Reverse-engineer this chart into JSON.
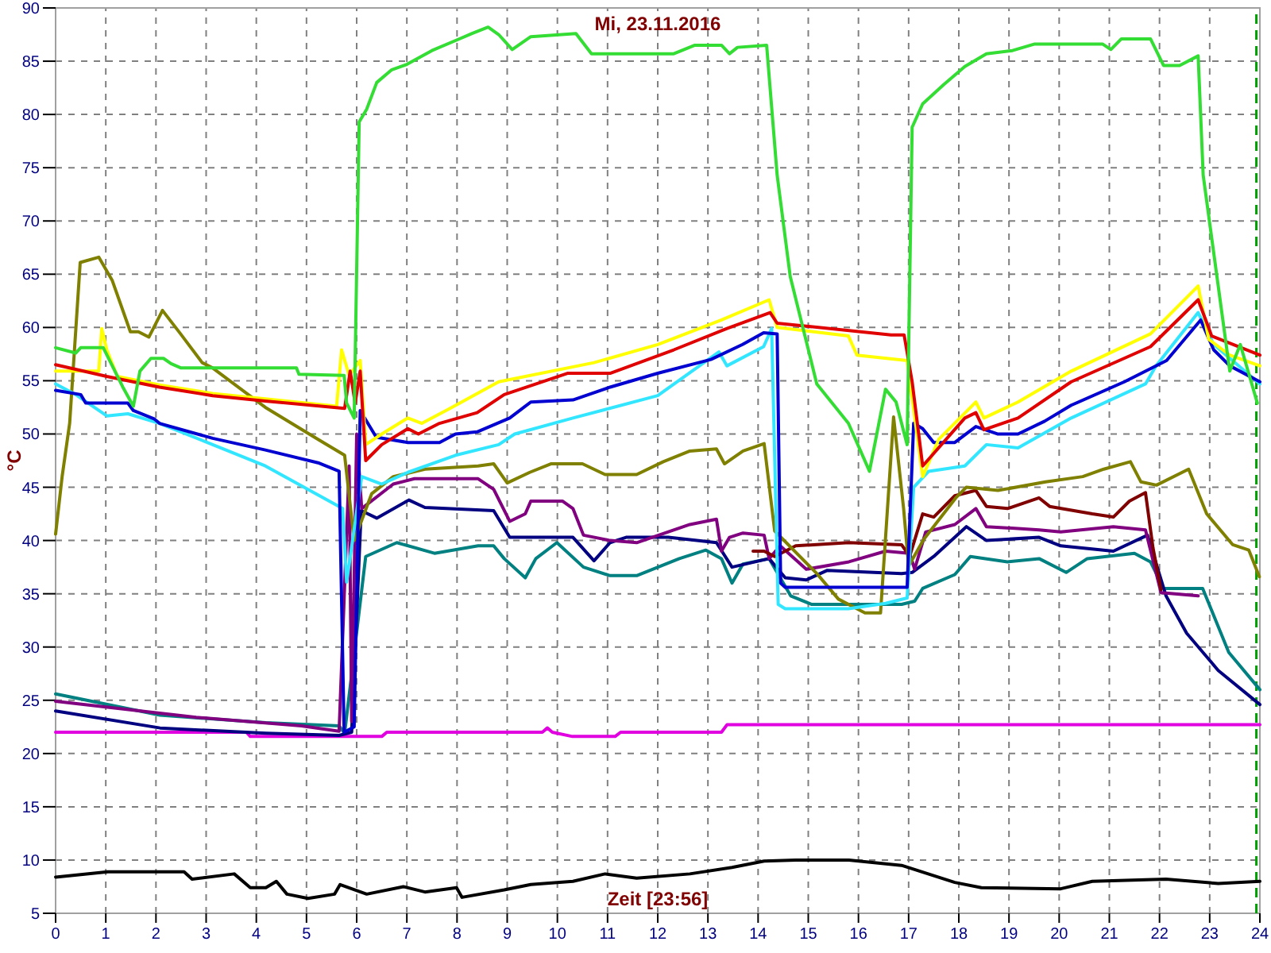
{
  "chart_data": {
    "type": "line",
    "title": "Mi, 23.11.2016",
    "xlabel": "Zeit [23:56]",
    "ylabel": "°C",
    "xlim": [
      0,
      24
    ],
    "ylim": [
      5,
      90
    ],
    "xticks": [
      0,
      1,
      2,
      3,
      4,
      5,
      6,
      7,
      8,
      9,
      10,
      11,
      12,
      13,
      14,
      15,
      16,
      17,
      18,
      19,
      20,
      21,
      22,
      23,
      24
    ],
    "yticks": [
      5,
      10,
      15,
      20,
      25,
      30,
      35,
      40,
      45,
      50,
      55,
      60,
      65,
      70,
      75,
      80,
      85,
      90
    ],
    "grid": true,
    "ref_lines": [
      {
        "axis": "x",
        "value": 23.93,
        "color": "#00a000",
        "line_style": "dashed"
      }
    ],
    "series": [
      {
        "color": "#000000",
        "x": [
          0,
          1.04,
          2.08,
          2.56,
          2.72,
          3.56,
          3.88,
          4.19,
          4.4,
          4.61,
          5.03,
          5.56,
          5.67,
          6.2,
          6.93,
          7.36,
          7.99,
          8.1,
          8.94,
          9.47,
          10.31,
          10.95,
          11.58,
          12.64,
          13.48,
          14.12,
          14.75,
          15.81,
          16.86,
          17.92,
          18.45,
          20.03,
          20.66,
          22.13,
          23.17,
          24
        ],
        "values": [
          8.4,
          8.9,
          8.9,
          8.9,
          8.2,
          8.7,
          7.4,
          7.4,
          8,
          6.8,
          6.4,
          6.8,
          7.7,
          6.8,
          7.5,
          7,
          7.4,
          6.5,
          7.2,
          7.7,
          8,
          8.7,
          8.3,
          8.7,
          9.3,
          9.9,
          10,
          10,
          9.5,
          7.9,
          7.4,
          7.3,
          8,
          8.2,
          7.8,
          8
        ]
      },
      {
        "color": "#e000e0",
        "x": [
          0,
          3.8,
          3.88,
          6.5,
          6.6,
          9.7,
          9.8,
          9.9,
          10.3,
          11.15,
          11.26,
          13.27,
          13.38,
          24
        ],
        "values": [
          22,
          22,
          21.6,
          21.6,
          22,
          22,
          22.4,
          22,
          21.6,
          21.6,
          22,
          22,
          22.7,
          22.7
        ]
      },
      {
        "color": "#008080",
        "x": [
          0,
          2.08,
          4.19,
          5.65,
          5.76,
          6.18,
          6.8,
          7.55,
          8.42,
          8.73,
          8.94,
          9.36,
          9.57,
          9.99,
          10.52,
          11.05,
          11.58,
          12.43,
          12.96,
          13.27,
          13.48,
          13.7,
          14.22,
          14.65,
          15.07,
          16.86,
          17.12,
          17.28,
          17.92,
          18.23,
          18.97,
          19.6,
          20.14,
          20.56,
          21.5,
          21.82,
          22.08,
          22.86,
          23.38,
          24
        ],
        "values": [
          25.6,
          23.6,
          22.9,
          22.6,
          21.9,
          38.5,
          39.8,
          38.8,
          39.5,
          39.5,
          38.3,
          36.5,
          38.3,
          39.8,
          37.5,
          36.7,
          36.7,
          38.3,
          39.1,
          38.3,
          36,
          37.8,
          38.3,
          34.8,
          34,
          34,
          34.3,
          35.5,
          36.8,
          38.5,
          38,
          38.3,
          37,
          38.3,
          38.8,
          38,
          35.5,
          35.5,
          29.5,
          26
        ]
      },
      {
        "color": "#000080",
        "x": [
          0,
          2.08,
          4.19,
          5.65,
          5.9,
          6.09,
          6.4,
          7.04,
          7.36,
          8.73,
          9.05,
          10.31,
          10.73,
          11.05,
          11.37,
          12.21,
          13.17,
          13.48,
          14.22,
          14.54,
          14.96,
          15.38,
          16.86,
          17.07,
          17.5,
          18.15,
          18.55,
          19.6,
          20.03,
          21.08,
          21.76,
          22.13,
          22.54,
          23.17,
          24
        ],
        "values": [
          24,
          22.4,
          21.9,
          21.7,
          22,
          42.8,
          42.1,
          43.8,
          43.1,
          42.8,
          40.3,
          40.3,
          38.1,
          39.8,
          40.3,
          40.3,
          39.8,
          37.5,
          38.3,
          36.5,
          36.3,
          37.2,
          36.9,
          37,
          38.5,
          41.3,
          40,
          40.3,
          39.5,
          39,
          40.5,
          34.8,
          31.3,
          27.8,
          24.6
        ]
      },
      {
        "color": "#800080",
        "x": [
          0,
          2.8,
          4.9,
          5.65,
          5.85,
          5.9,
          6,
          6.1,
          6.73,
          7.15,
          8.42,
          8.73,
          9.05,
          9.36,
          9.47,
          10.1,
          10.31,
          10.52,
          11.05,
          11.58,
          12.64,
          13.17,
          13.27,
          13.43,
          13.7,
          14.12,
          14.22,
          14.44,
          14.96,
          15.81,
          16.54,
          17.02,
          17.12,
          17.34,
          17.92,
          18.34,
          18.55,
          19.6,
          20.03,
          21.08,
          21.72,
          22.03,
          22.77
        ],
        "values": [
          24.9,
          23.4,
          22.6,
          22.1,
          47,
          23,
          50,
          43,
          45.3,
          45.8,
          45.8,
          44.8,
          41.8,
          42.5,
          43.7,
          43.7,
          43,
          40.5,
          40,
          39.8,
          41.5,
          42,
          39,
          40.3,
          40.7,
          40.5,
          38.3,
          39.5,
          37.3,
          38,
          39,
          38.8,
          37.3,
          40.8,
          41.5,
          43,
          41.3,
          41,
          40.8,
          41.3,
          41,
          35.1,
          34.8
        ]
      },
      {
        "color": "#800000",
        "x": [
          13.9,
          14.12,
          14.33,
          14.75,
          15.81,
          16.86,
          17.02,
          17.28,
          17.5,
          17.92,
          18.34,
          18.55,
          18.97,
          19.6,
          19.81,
          20.66,
          21.08,
          21.4,
          21.72,
          21.87,
          22.03
        ],
        "values": [
          39,
          39,
          38.5,
          39.5,
          39.8,
          39.6,
          38.5,
          42.5,
          42.2,
          44.2,
          44.7,
          43.2,
          43,
          44,
          43.2,
          42.5,
          42.2,
          43.7,
          44.5,
          39.3,
          35.4
        ]
      },
      {
        "color": "#808000",
        "x": [
          0,
          0.13,
          0.28,
          0.49,
          0.86,
          1.13,
          1.49,
          1.65,
          1.86,
          2.13,
          2.49,
          2.92,
          3.13,
          4.18,
          5.23,
          5.76,
          5.95,
          6.3,
          6.73,
          7.36,
          8.42,
          8.73,
          9,
          9.45,
          9.87,
          10.5,
          10.95,
          11.58,
          12.11,
          12.64,
          13.17,
          13.33,
          13.7,
          14.12,
          14.33,
          14.75,
          15.17,
          15.6,
          16.13,
          16.44,
          16.7,
          16.9,
          17,
          17.3,
          17.94,
          18.15,
          18.78,
          19.73,
          20.47,
          20.89,
          21.42,
          21.63,
          21.94,
          22.58,
          22.94,
          23.46,
          23.78,
          23.99
        ],
        "values": [
          40.6,
          46,
          51,
          66.1,
          66.6,
          64.4,
          59.6,
          59.6,
          59.1,
          61.6,
          59.4,
          56.7,
          56.2,
          52.5,
          49.5,
          48,
          40,
          44.4,
          46,
          46.7,
          47,
          47.2,
          45.4,
          46.4,
          47.2,
          47.2,
          46.2,
          46.2,
          47.4,
          48.4,
          48.6,
          47.2,
          48.4,
          49.1,
          40.9,
          38.9,
          36.9,
          34.5,
          33.2,
          33.2,
          51.6,
          43,
          37.6,
          40.1,
          44,
          45,
          44.7,
          45.5,
          46,
          46.7,
          47.4,
          45.5,
          45.2,
          46.7,
          42.5,
          39.6,
          39.1,
          36.6
        ]
      },
      {
        "color": "#33e6ff",
        "x": [
          0,
          0.4,
          1.02,
          1.44,
          2.07,
          3.13,
          4.18,
          5.72,
          5.8,
          6.1,
          6.5,
          7.02,
          7.97,
          8.83,
          9.15,
          10.31,
          12,
          13.22,
          13.38,
          14.11,
          14.27,
          14.4,
          14.54,
          15.8,
          16.54,
          16.97,
          17.1,
          17.4,
          18.12,
          18.55,
          19.18,
          20.24,
          21.72,
          21.93,
          22.77,
          23.08,
          24
        ],
        "values": [
          54.7,
          53.7,
          51.7,
          51.9,
          51,
          49,
          47,
          43,
          36.1,
          46,
          45.3,
          46.4,
          48,
          49,
          50,
          51.5,
          53.6,
          57.7,
          56.4,
          58.2,
          59.9,
          34,
          33.6,
          33.6,
          34.1,
          34.6,
          45,
          46.5,
          47,
          49,
          48.7,
          51.5,
          54.7,
          56.4,
          61.4,
          58.4,
          54.7
        ]
      },
      {
        "color": "#0000d0",
        "x": [
          0,
          0.5,
          0.6,
          1.44,
          1.55,
          1.97,
          2.07,
          3.13,
          4.18,
          5.23,
          5.65,
          5.75,
          5.95,
          6.07,
          6.39,
          7.02,
          7.65,
          7.97,
          8.4,
          9.05,
          9.47,
          10.31,
          11.05,
          12,
          13.06,
          13.69,
          14.11,
          14.38,
          14.45,
          14.54,
          16.97,
          17.1,
          17.28,
          17.5,
          17.92,
          18.34,
          18.77,
          19.18,
          19.71,
          20.24,
          21.3,
          22.14,
          22.82,
          23.08,
          23.4,
          24
        ],
        "values": [
          54.1,
          53.7,
          52.9,
          52.9,
          52.2,
          51.4,
          51,
          49.6,
          48.5,
          47.3,
          46.5,
          22,
          22.5,
          52.2,
          49.7,
          49.2,
          49.2,
          50,
          50.2,
          51.5,
          53,
          53.2,
          54.4,
          55.7,
          57,
          58.4,
          59.5,
          59.4,
          36,
          35.6,
          35.6,
          51,
          50.5,
          49.2,
          49.2,
          50.7,
          50,
          50,
          51.2,
          52.7,
          54.9,
          56.9,
          60.7,
          57.9,
          56.4,
          54.9
        ]
      },
      {
        "color": "#ffff00",
        "x": [
          0,
          0.86,
          0.92,
          1.02,
          1.23,
          2.07,
          3.13,
          4.18,
          5.6,
          5.7,
          5.85,
          6.07,
          6.18,
          6.5,
          7.02,
          7.3,
          7.86,
          8.83,
          10.73,
          12,
          13.27,
          14.22,
          14.38,
          15.8,
          15.97,
          16.97,
          17.28,
          17.6,
          18.34,
          18.5,
          19.18,
          20.24,
          21.82,
          22.77,
          22.98,
          23.4,
          24
        ],
        "values": [
          55.9,
          55.9,
          59.9,
          57.9,
          55.4,
          54.6,
          53.8,
          53.3,
          52.6,
          57.9,
          55.5,
          56.9,
          49,
          50,
          51.5,
          51,
          52.4,
          54.9,
          56.7,
          58.4,
          60.7,
          62.6,
          60,
          59.2,
          57.4,
          56.9,
          46,
          49.5,
          53,
          51.5,
          53,
          55.9,
          59.4,
          63.9,
          58.9,
          57.4,
          56.4
        ]
      },
      {
        "color": "#e00000",
        "x": [
          0,
          1.02,
          2.07,
          3.13,
          4.18,
          5.76,
          5.87,
          5.97,
          6.07,
          6.18,
          6.5,
          7.02,
          7.23,
          7.65,
          8.4,
          8.94,
          10.2,
          11.05,
          12.32,
          13.38,
          14.24,
          14.38,
          16.65,
          16.91,
          17.07,
          17.28,
          18.12,
          18.34,
          18.5,
          19.18,
          20.24,
          21.82,
          22.77,
          23.04,
          24
        ],
        "values": [
          56.5,
          55.4,
          54.4,
          53.6,
          53.1,
          52.4,
          55.9,
          52.9,
          55.9,
          47.5,
          49,
          50.5,
          50,
          51,
          52,
          53.7,
          55.7,
          55.7,
          57.9,
          59.9,
          61.4,
          60.4,
          59.3,
          59.3,
          54.9,
          47,
          51.5,
          52,
          50.4,
          51.5,
          54.9,
          58.2,
          62.6,
          59.2,
          57.4
        ]
      },
      {
        "color": "#33dd33",
        "x": [
          0,
          0.4,
          0.5,
          0.95,
          1.34,
          1.55,
          1.68,
          1.9,
          2.15,
          2.3,
          2.5,
          4.8,
          4.85,
          5.75,
          5.8,
          5.95,
          6.05,
          6.2,
          6.4,
          6.7,
          7,
          7.5,
          8,
          8.3,
          8.62,
          8.83,
          9.1,
          9.47,
          10.37,
          10.68,
          12.32,
          12.74,
          13.27,
          13.43,
          13.59,
          14.17,
          14.38,
          14.64,
          15.17,
          15.8,
          16.22,
          16.54,
          16.75,
          16.97,
          17.07,
          17.28,
          17.7,
          18.12,
          18.55,
          19.07,
          19.5,
          20.87,
          21.03,
          21.24,
          21.82,
          22.08,
          22.4,
          22.77,
          22.87,
          23.4,
          23.61,
          23.95
        ],
        "values": [
          58.1,
          57.6,
          58.1,
          58.1,
          54.4,
          52.6,
          55.9,
          57.1,
          57.1,
          56.6,
          56.2,
          56.2,
          55.6,
          55.5,
          52.9,
          51.5,
          79.3,
          80.5,
          83,
          84.2,
          84.7,
          86,
          87,
          87.6,
          88.2,
          87.5,
          86.1,
          87.3,
          87.6,
          85.7,
          85.7,
          86.5,
          86.5,
          85.7,
          86.3,
          86.5,
          74.3,
          64.8,
          54.7,
          51,
          46.5,
          54.2,
          53,
          49,
          78.8,
          81,
          82.8,
          84.5,
          85.7,
          86,
          86.6,
          86.6,
          86.1,
          87.1,
          87.1,
          84.6,
          84.6,
          85.5,
          74.3,
          55.9,
          58.4,
          52.9
        ]
      }
    ]
  }
}
